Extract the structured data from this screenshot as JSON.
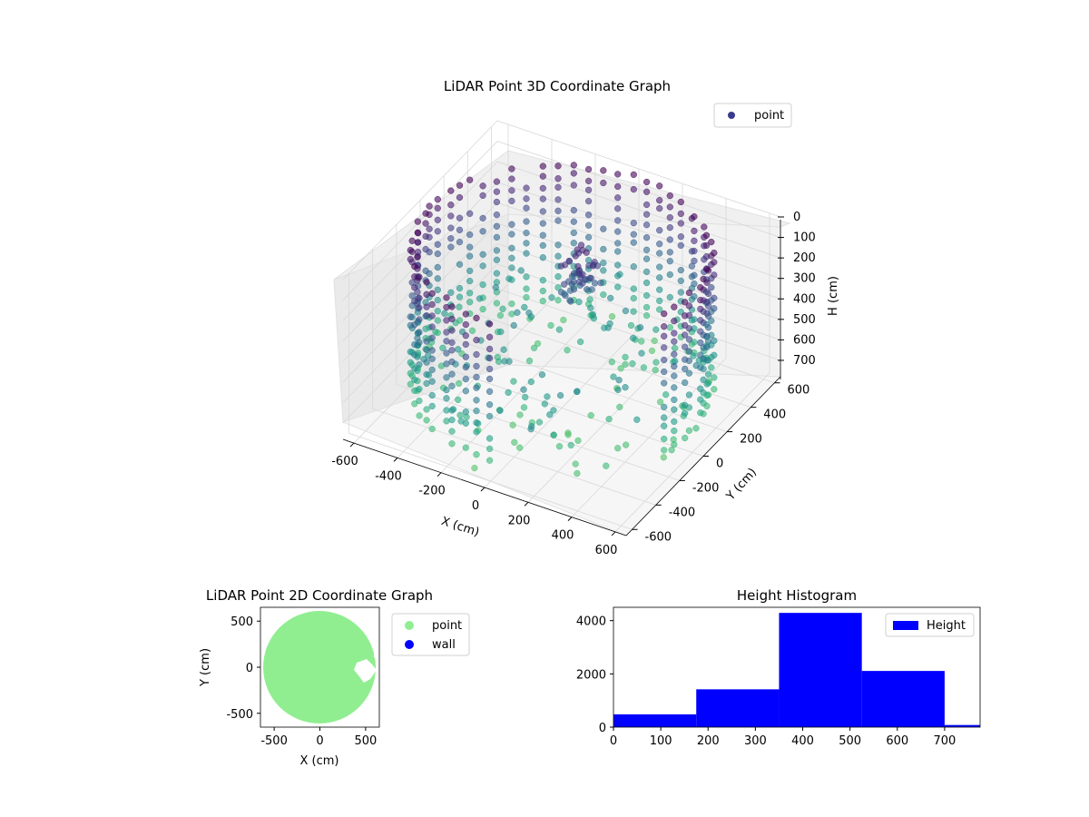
{
  "chart_data": [
    {
      "type": "scatter3d",
      "title": "LiDAR Point 3D Coordinate Graph",
      "xlabel": "X (cm)",
      "ylabel": "Y (cm)",
      "zlabel": "H (cm)",
      "xticks": [
        -600,
        -400,
        -200,
        0,
        200,
        400,
        600
      ],
      "yticks": [
        -600,
        -400,
        -200,
        0,
        200,
        400,
        600
      ],
      "zticks": [
        0,
        100,
        200,
        300,
        400,
        500,
        600,
        700
      ],
      "xlim": [
        -650,
        650
      ],
      "ylim": [
        -650,
        650
      ],
      "zlim": [
        780,
        0
      ],
      "z_inverted": true,
      "legend": {
        "label": "point",
        "position": "upper-right"
      },
      "colormap": "viridis",
      "shape": "cylindrical wall of points, radius about 600 cm, heights 0-780 cm, with a gap on the +x/-y side and a dense cluster near the center top",
      "grid": true
    },
    {
      "type": "scatter",
      "title": "LiDAR Point 2D Coordinate Graph",
      "xlabel": "X (cm)",
      "ylabel": "Y (cm)",
      "xticks": [
        -500,
        0,
        500
      ],
      "yticks": [
        500,
        0,
        -500
      ],
      "xlim": [
        -650,
        650
      ],
      "ylim": [
        -650,
        650
      ],
      "series": [
        {
          "name": "point",
          "color": "#90ee90",
          "shape": "filled disc of radius about 620 cm centered at origin with a notch near (500, 0)"
        },
        {
          "name": "wall",
          "color": "#0000ff"
        }
      ],
      "legend": {
        "position": "outside-right"
      }
    },
    {
      "type": "histogram",
      "title": "Height Histogram",
      "xticks": [
        0,
        100,
        200,
        300,
        400,
        500,
        600,
        700
      ],
      "yticks": [
        0,
        2000,
        4000
      ],
      "xlim": [
        0,
        775
      ],
      "ylim": [
        0,
        4500
      ],
      "bins": [
        {
          "start": 0,
          "end": 175,
          "value": 480
        },
        {
          "start": 175,
          "end": 350,
          "value": 1420
        },
        {
          "start": 350,
          "end": 525,
          "value": 4290
        },
        {
          "start": 525,
          "end": 700,
          "value": 2110
        },
        {
          "start": 700,
          "end": 775,
          "value": 80
        }
      ],
      "series_name": "Height",
      "bar_color": "#0000ff",
      "legend": {
        "position": "upper-right"
      }
    }
  ]
}
